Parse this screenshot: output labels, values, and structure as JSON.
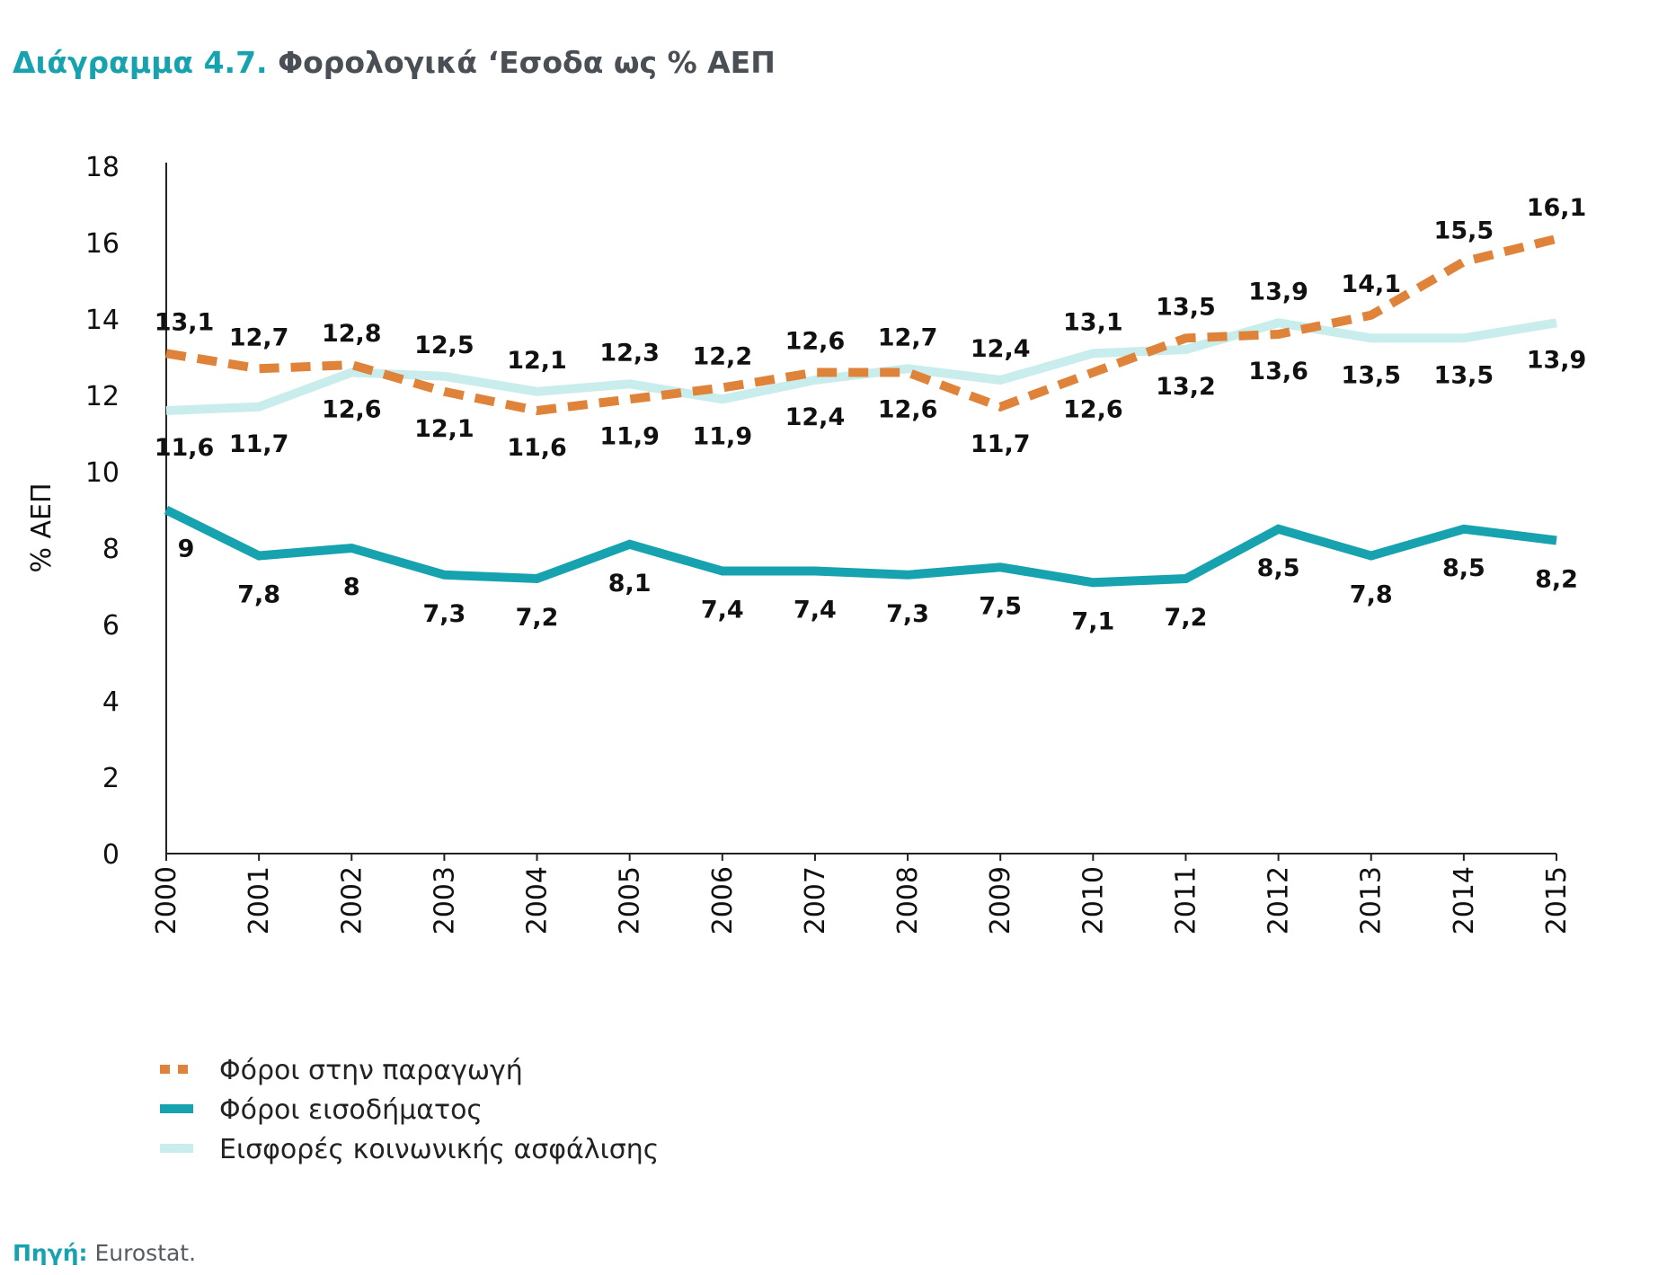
{
  "title": {
    "prefix": "Διάγραμμα 4.7.",
    "text": "Φορολογικά ‘Εσοδα ως % ΑΕΠ"
  },
  "source": {
    "label": "Πηγή:",
    "text": "Eurostat."
  },
  "chart_data": {
    "type": "line",
    "ylabel": "% ΑΕΠ",
    "ylim": [
      0,
      18
    ],
    "yticks": [
      0,
      2,
      4,
      6,
      8,
      10,
      12,
      14,
      16,
      18
    ],
    "categories": [
      "2000",
      "2001",
      "2002",
      "2003",
      "2004",
      "2005",
      "2006",
      "2007",
      "2008",
      "2009",
      "2010",
      "2011",
      "2012",
      "2013",
      "2014",
      "2015"
    ],
    "grid": false,
    "legend_position": "bottom-left",
    "series": [
      {
        "name": "Φόροι στην παραγωγή",
        "color": "#E0833A",
        "style": "dashed",
        "values": [
          13.1,
          12.7,
          12.8,
          12.1,
          11.6,
          11.9,
          12.2,
          12.6,
          12.6,
          11.7,
          12.6,
          13.5,
          13.6,
          14.1,
          15.5,
          16.1
        ],
        "labels": [
          "13,1",
          "12,7",
          "12,8",
          "12,1",
          "11,6",
          "11,9",
          "12,2",
          "12,6",
          "12,6",
          "11,7",
          "12,6",
          "13,5",
          "13,6",
          "14,1",
          "15,5",
          "16,1"
        ]
      },
      {
        "name": "Φόροι εισοδήματος",
        "color": "#17A2B0",
        "style": "solid",
        "values": [
          9,
          7.8,
          8,
          7.3,
          7.2,
          8.1,
          7.4,
          7.4,
          7.3,
          7.5,
          7.1,
          7.2,
          8.5,
          7.8,
          8.5,
          8.2
        ],
        "labels": [
          "9",
          "7,8",
          "8",
          "7,3",
          "7,2",
          "8,1",
          "7,4",
          "7,4",
          "7,3",
          "7,5",
          "7,1",
          "7,2",
          "8,5",
          "7,8",
          "8,5",
          "8,2"
        ]
      },
      {
        "name": "Εισφορές κοινωνικής ασφάλισης",
        "color": "#C8EDEC",
        "style": "solid",
        "values": [
          11.6,
          11.7,
          12.6,
          12.5,
          12.1,
          12.3,
          11.9,
          12.4,
          12.7,
          12.4,
          13.1,
          13.2,
          13.9,
          13.5,
          13.5,
          13.9
        ],
        "labels": [
          "11,6",
          "11,7",
          "12,6",
          "12,5",
          "12,1",
          "12,3",
          "11,9",
          "12,4",
          "12,7",
          "12,4",
          "13,1",
          "13,2",
          "13,9",
          "13,5",
          "13,5",
          "13,9"
        ]
      }
    ]
  }
}
